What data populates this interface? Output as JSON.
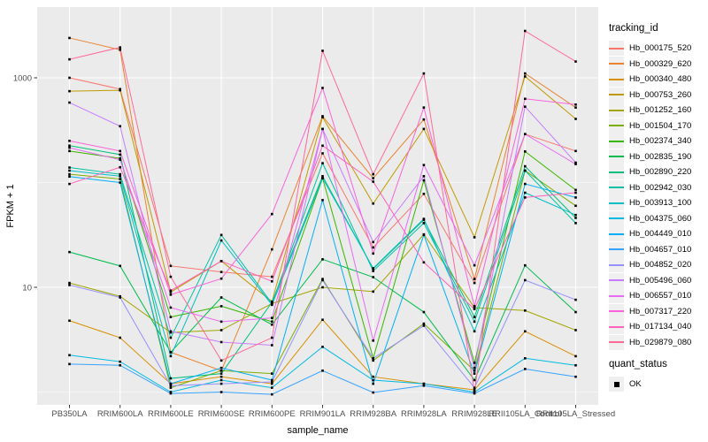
{
  "chart_data": {
    "type": "line",
    "title": "",
    "xlabel": "sample_name",
    "ylabel": "FPKM + 1",
    "y_scale": "log10",
    "y_ticks": [
      10,
      1000
    ],
    "y_minor_gridlines": [
      1,
      100
    ],
    "ylim": [
      0.75,
      4700
    ],
    "grid": "on",
    "legend_position": "right",
    "legend_title": "tracking_id",
    "point_marker": "small-black-square",
    "panel_bg": "#EBEBEB",
    "grid_color": "#FFFFFF",
    "tick_label_color": "#4D4D4D",
    "categories": [
      "PB350LA",
      "RRIM600LA",
      "RRIM600LE",
      "RRIM600SE",
      "RRIM600PE",
      "RRIM901LA",
      "RRIM928BA",
      "RRIM928LA",
      "RRIM928LE",
      "RRII105LA_Control",
      "RRII105LA_Stressed"
    ],
    "series": [
      {
        "name": "Hb_000175_520",
        "color": "#F8766D",
        "values": [
          1000,
          780,
          16,
          14,
          12.6,
          190,
          24,
          78,
          11,
          290,
          200
        ]
      },
      {
        "name": "Hb_000329_620",
        "color": "#EA8331",
        "values": [
          2400,
          1850,
          2.4,
          1.6,
          23,
          430,
          110,
          400,
          12,
          1100,
          520
        ]
      },
      {
        "name": "Hb_000340_480",
        "color": "#D89000",
        "values": [
          4.8,
          3.3,
          1.2,
          1.4,
          1.2,
          4.9,
          1.4,
          1.2,
          1.05,
          3.8,
          2.2
        ]
      },
      {
        "name": "Hb_000753_260",
        "color": "#C09B00",
        "values": [
          745,
          760,
          9.0,
          17.8,
          7.3,
          420,
          63,
          325,
          30,
          1030,
          405
        ]
      },
      {
        "name": "Hb_001252_160",
        "color": "#A3A500",
        "values": [
          11,
          8.2,
          3.7,
          3.9,
          7.0,
          10,
          9.1,
          32,
          6.4,
          6.0,
          3.9
        ]
      },
      {
        "name": "Hb_001504_170",
        "color": "#7CAE00",
        "values": [
          120,
          108,
          1.1,
          1.6,
          1.5,
          12,
          2.0,
          4.5,
          1.6,
          130,
          60
        ]
      },
      {
        "name": "Hb_002374_340",
        "color": "#39B600",
        "values": [
          200,
          170,
          5.2,
          6.6,
          4.7,
          110,
          2.1,
          105,
          1.9,
          198,
          85
        ]
      },
      {
        "name": "Hb_002835_190",
        "color": "#00BB4E",
        "values": [
          21.7,
          16,
          2.4,
          8.0,
          4.4,
          18.5,
          12.5,
          5.8,
          1.3,
          16.2,
          5.8
        ]
      },
      {
        "name": "Hb_002890_220",
        "color": "#00BF7D",
        "values": [
          225,
          185,
          1.35,
          1.5,
          7.2,
          115,
          15,
          44,
          5.2,
          143,
          46
        ]
      },
      {
        "name": "Hb_002942_030",
        "color": "#00C1A3",
        "values": [
          139,
          120,
          3.3,
          31.6,
          7.0,
          153,
          14.3,
          41,
          4.7,
          130,
          41
        ]
      },
      {
        "name": "Hb_003913_100",
        "color": "#00BFC4",
        "values": [
          130,
          115,
          2.2,
          28,
          6.8,
          110,
          15.2,
          45,
          3.8,
          80,
          49
        ]
      },
      {
        "name": "Hb_004375_060",
        "color": "#00BAE0",
        "values": [
          2.25,
          1.95,
          1.0,
          1.3,
          1.1,
          2.7,
          1.3,
          1.2,
          1.0,
          2.1,
          1.8
        ]
      },
      {
        "name": "Hb_004449_010",
        "color": "#00B0F6",
        "values": [
          114,
          100,
          1.2,
          1.7,
          1.3,
          68,
          1.2,
          31.6,
          1.5,
          97,
          72
        ]
      },
      {
        "name": "Hb_004657_010",
        "color": "#35A2FF",
        "values": [
          1.85,
          1.8,
          0.97,
          1.0,
          0.95,
          1.6,
          0.99,
          1.15,
          0.97,
          1.66,
          1.4
        ]
      },
      {
        "name": "Hb_004852_020",
        "color": "#9590FF",
        "values": [
          10.5,
          8.0,
          1.15,
          1.2,
          1.25,
          11.7,
          2.1,
          4.3,
          1.1,
          11.7,
          7.6
        ]
      },
      {
        "name": "Hb_005496_060",
        "color": "#C77CFF",
        "values": [
          580,
          345,
          3.8,
          3.0,
          2.8,
          325,
          27,
          115,
          1.7,
          530,
          155
        ]
      },
      {
        "name": "Hb_006557_010",
        "color": "#E76BF3",
        "values": [
          215,
          165,
          6.4,
          4.7,
          5.1,
          325,
          3.1,
          147,
          16.2,
          290,
          150
        ]
      },
      {
        "name": "Hb_007317_220",
        "color": "#FA62DB",
        "values": [
          250,
          200,
          8.5,
          12.1,
          50,
          800,
          21,
          520,
          6.6,
          630,
          555
        ]
      },
      {
        "name": "Hb_017134_040",
        "color": "#FF62BC",
        "values": [
          97,
          140,
          9.3,
          17.8,
          11.4,
          225,
          102,
          17.3,
          6.2,
          72,
          80
        ]
      },
      {
        "name": "Hb_029879_080",
        "color": "#FF6A98",
        "values": [
          1500,
          1950,
          12.6,
          2.0,
          3.3,
          1810,
          120,
          1100,
          1.0,
          2800,
          1430
        ]
      }
    ],
    "quant_status": {
      "title": "quant_status",
      "items": [
        {
          "label": "OK",
          "marker_color": "#000000"
        }
      ]
    }
  }
}
